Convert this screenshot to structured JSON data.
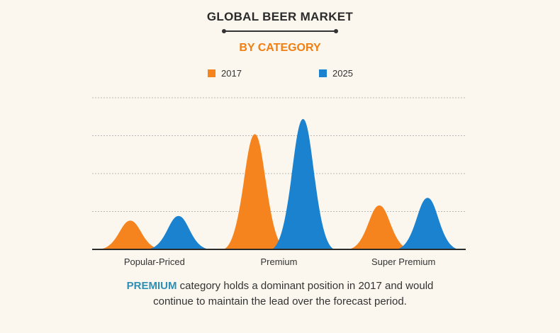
{
  "colors": {
    "accent": "#f07e12",
    "series_2017": "#f5841f",
    "series_2025": "#1a82cf",
    "highlight": "#2d8fb5"
  },
  "header": {
    "title": "GLOBAL BEER MARKET",
    "subtitle": "BY CATEGORY"
  },
  "caption": {
    "highlight": "PREMIUM",
    "line1_rest": " category holds a dominant position in 2017 and would",
    "line2": "continue to maintain the lead over the forecast period."
  },
  "chart_data": {
    "type": "area",
    "title": "GLOBAL BEER MARKET",
    "subtitle": "BY CATEGORY",
    "categories": [
      "Popular-Priced",
      "Premium",
      "Super Premium"
    ],
    "series": [
      {
        "name": "2017",
        "values": [
          19,
          76,
          29
        ]
      },
      {
        "name": "2025",
        "values": [
          22,
          86,
          34
        ]
      }
    ],
    "ylim": [
      0,
      100
    ],
    "grid": true,
    "legend_position": "top-center",
    "yaxis_labels_shown": false
  }
}
